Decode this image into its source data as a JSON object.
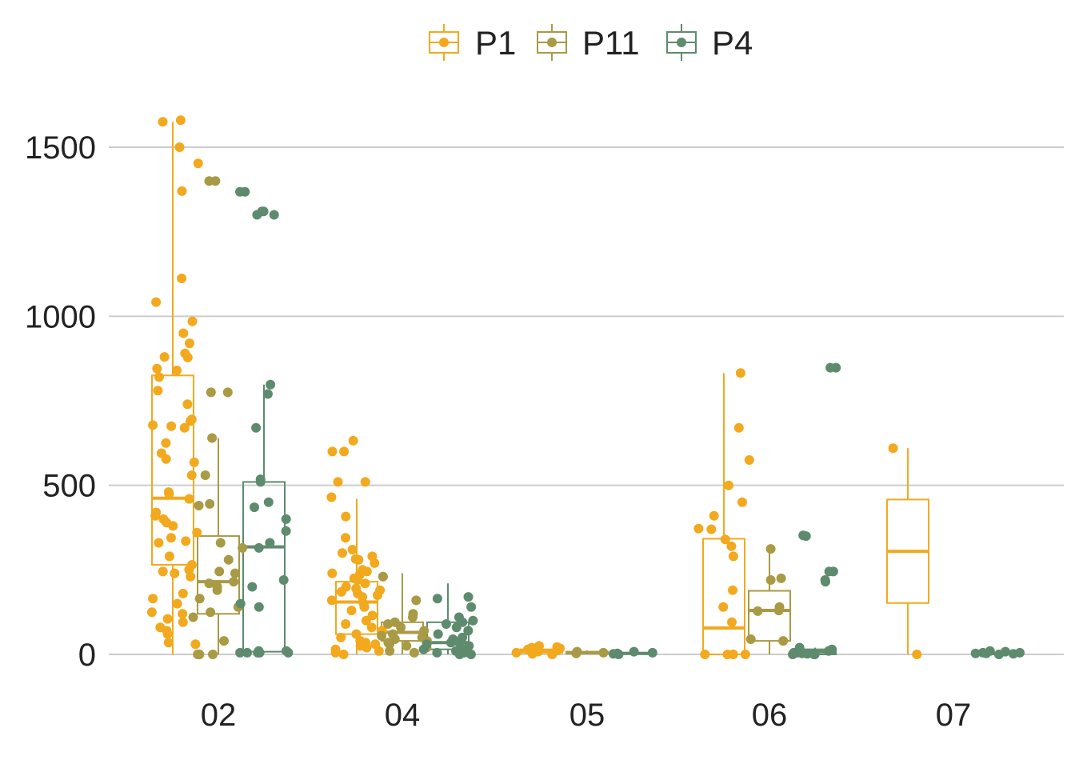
{
  "chart_data": {
    "type": "box",
    "categories": [
      "02",
      "04",
      "05",
      "06",
      "07"
    ],
    "ylim": [
      -80,
      1620
    ],
    "yticks": [
      0,
      500,
      1000,
      1500
    ],
    "grid": "horizontal",
    "legend_position": "top",
    "colors": {
      "P1": "#F2A91E",
      "P11": "#A99A45",
      "P4": "#5E8B6E"
    },
    "series": [
      {
        "name": "P1",
        "boxes": [
          {
            "category": "02",
            "min": 0,
            "q1": 265,
            "median": 462,
            "q3": 825,
            "max": 1575
          },
          {
            "category": "04",
            "min": 0,
            "q1": 60,
            "median": 155,
            "q3": 215,
            "max": 460
          },
          {
            "category": "05",
            "min": 0,
            "q1": 5,
            "median": 10,
            "q3": 15,
            "max": 25
          },
          {
            "category": "06",
            "min": 0,
            "q1": 0,
            "median": 78,
            "q3": 342,
            "max": 832
          },
          {
            "category": "07",
            "min": 0,
            "q1": 152,
            "median": 305,
            "q3": 458,
            "max": 610
          }
        ],
        "points": {
          "02": [
            1580,
            1575,
            1500,
            1452,
            1370,
            1112,
            1042,
            985,
            950,
            920,
            890,
            880,
            878,
            845,
            840,
            820,
            780,
            740,
            695,
            690,
            678,
            675,
            670,
            625,
            595,
            578,
            568,
            530,
            480,
            475,
            460,
            420,
            410,
            400,
            390,
            380,
            360,
            345,
            335,
            330,
            290,
            265,
            250,
            245,
            240,
            230,
            180,
            165,
            150,
            125,
            120,
            105,
            95,
            80,
            70,
            60,
            35,
            30
          ],
          "04": [
            632,
            600,
            600,
            510,
            510,
            465,
            408,
            345,
            310,
            300,
            290,
            282,
            280,
            270,
            250,
            245,
            240,
            235,
            225,
            220,
            210,
            200,
            195,
            190,
            185,
            180,
            175,
            170,
            160,
            150,
            140,
            130,
            115,
            100,
            90,
            80,
            70,
            60,
            50,
            40,
            35,
            30,
            25,
            20,
            15,
            10,
            5,
            0
          ],
          "05": [
            25,
            22,
            20,
            18,
            15,
            12,
            10,
            8,
            5,
            2,
            0
          ],
          "06": [
            832,
            670,
            575,
            500,
            450,
            410,
            372,
            370,
            340,
            320,
            290,
            190,
            140,
            95,
            0,
            0,
            0,
            0
          ],
          "07": [
            610,
            0
          ]
        }
      },
      {
        "name": "P11",
        "boxes": [
          {
            "category": "02",
            "min": 0,
            "q1": 120,
            "median": 215,
            "q3": 350,
            "max": 640
          },
          {
            "category": "04",
            "min": 0,
            "q1": 40,
            "median": 65,
            "q3": 95,
            "max": 240
          },
          {
            "category": "05",
            "min": 0,
            "q1": 3,
            "median": 5,
            "q3": 8,
            "max": 12
          },
          {
            "category": "06",
            "min": 0,
            "q1": 40,
            "median": 130,
            "q3": 188,
            "max": 312
          }
        ],
        "points": {
          "02": [
            1400,
            1400,
            775,
            775,
            640,
            530,
            445,
            440,
            330,
            315,
            280,
            245,
            240,
            215,
            210,
            200,
            190,
            165,
            140,
            125,
            110,
            40,
            0,
            0,
            0
          ],
          "04": [
            230,
            230,
            160,
            120,
            110,
            95,
            90,
            80,
            70,
            60,
            55,
            50,
            45,
            40,
            35,
            30,
            25,
            20,
            10,
            5
          ],
          "05": [
            8,
            5,
            3
          ],
          "06": [
            312,
            225,
            220,
            140,
            130,
            128,
            45,
            40
          ]
        }
      },
      {
        "name": "P4",
        "boxes": [
          {
            "category": "02",
            "min": 5,
            "q1": 8,
            "median": 318,
            "q3": 510,
            "max": 798
          },
          {
            "category": "04",
            "min": 0,
            "q1": 15,
            "median": 35,
            "q3": 95,
            "max": 210
          },
          {
            "category": "05",
            "min": 0,
            "q1": 2,
            "median": 3,
            "q3": 5,
            "max": 8
          },
          {
            "category": "06",
            "min": 0,
            "q1": 0,
            "median": 8,
            "q3": 15,
            "max": 20
          },
          {
            "category": "07",
            "min": 0,
            "q1": 0,
            "median": 3,
            "q3": 5,
            "max": 10
          }
        ],
        "points": {
          "02": [
            1368,
            1368,
            1310,
            1310,
            1300,
            1300,
            798,
            770,
            670,
            510,
            518,
            450,
            435,
            400,
            365,
            330,
            315,
            220,
            200,
            150,
            140,
            10,
            10,
            5,
            5,
            5,
            5,
            5
          ],
          "04": [
            170,
            165,
            140,
            110,
            100,
            95,
            90,
            80,
            70,
            60,
            50,
            45,
            40,
            35,
            30,
            25,
            20,
            15,
            10,
            5,
            5,
            0,
            0
          ],
          "05": [
            8,
            5,
            3,
            2,
            0
          ],
          "06": [
            848,
            848,
            352,
            350,
            245,
            245,
            220,
            215,
            20,
            15,
            12,
            10,
            8,
            5,
            5,
            3,
            2,
            0,
            0,
            0
          ],
          "07": [
            10,
            8,
            5,
            5,
            3,
            3,
            2,
            0
          ]
        }
      }
    ]
  }
}
